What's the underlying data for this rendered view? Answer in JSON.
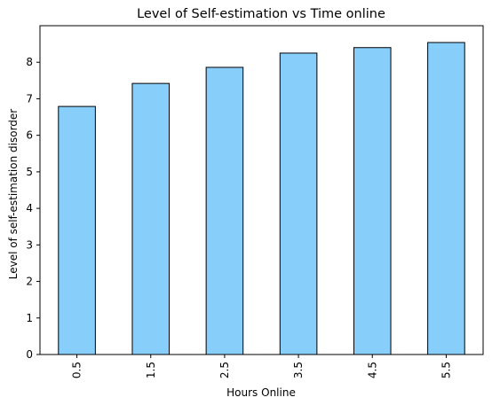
{
  "chart_data": {
    "type": "bar",
    "title": "Level of Self-estimation vs Time online",
    "xlabel": "Hours Online",
    "ylabel": "Level of self-estimation disorder",
    "categories": [
      "0.5",
      "1.5",
      "2.5",
      "3.5",
      "4.5",
      "5.5"
    ],
    "values": [
      6.79,
      7.42,
      7.86,
      8.25,
      8.4,
      8.54
    ],
    "ylim": [
      0,
      9
    ],
    "yticks": [
      0,
      1,
      2,
      3,
      4,
      5,
      6,
      7,
      8
    ],
    "x_tick_rotation": "vertical",
    "grid": false,
    "legend": "none",
    "bar_color": "#87CEFA",
    "bar_edge_color": "#000000"
  }
}
